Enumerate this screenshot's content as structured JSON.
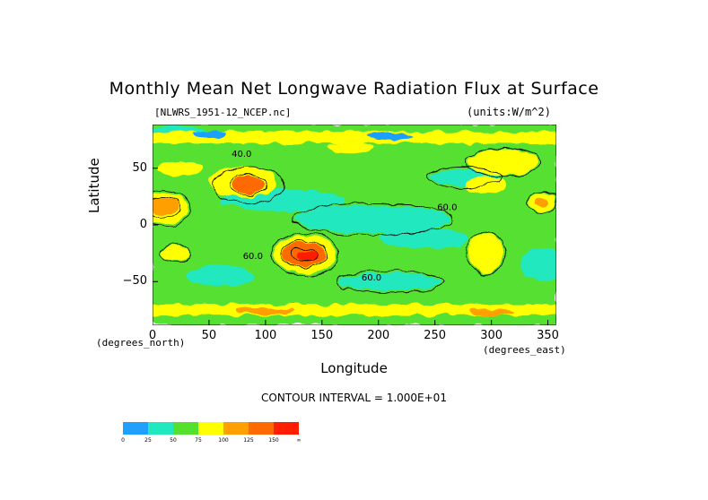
{
  "chart_data": {
    "type": "heatmap",
    "title": "Monthly Mean Net Longwave Radiation Flux at Surface",
    "subtitle_left": "[NLWRS_1951-12_NCEP.nc]",
    "subtitle_right": "(units:W/m^2)",
    "xlabel": "Longitude",
    "xlabel_unit": "(degrees_east)",
    "ylabel": "Latitude",
    "ylabel_unit": "(degrees_north)",
    "xlim": [
      0,
      357.5
    ],
    "ylim": [
      -88.5,
      88.5
    ],
    "x_ticks": [
      {
        "value": 0,
        "label": "0"
      },
      {
        "value": 50,
        "label": "50"
      },
      {
        "value": 100,
        "label": "100"
      },
      {
        "value": 150,
        "label": "150"
      },
      {
        "value": 200,
        "label": "200"
      },
      {
        "value": 250,
        "label": "250"
      },
      {
        "value": 300,
        "label": "300"
      },
      {
        "value": 350,
        "label": "350"
      }
    ],
    "y_ticks": [
      {
        "value": 50,
        "label": "50"
      },
      {
        "value": 0,
        "label": "0"
      },
      {
        "value": -50,
        "label": "−50"
      }
    ],
    "contour_interval_text": "CONTOUR INTERVAL = 1.000E+01",
    "contour_labels": [
      {
        "text": "40.0",
        "x": 70,
        "y": 60
      },
      {
        "text": "60.0",
        "x": 252,
        "y": 13
      },
      {
        "text": "60.0",
        "x": 80,
        "y": -30
      },
      {
        "text": "60.0",
        "x": 185,
        "y": -49
      }
    ],
    "colorbar": {
      "levels": [
        "0",
        "25",
        "50",
        "75",
        "100",
        "125",
        "150",
        "∞"
      ],
      "colors": [
        "#1fa0ff",
        "#22e8c0",
        "#55e030",
        "#ffff00",
        "#ffa000",
        "#ff6a00",
        "#ff1f00"
      ]
    },
    "regions": [
      {
        "name": "tropical-pacific-low",
        "level": 1,
        "x": 185,
        "y": 5
      },
      {
        "name": "australia-high",
        "level": 5,
        "x": 135,
        "y": -25
      },
      {
        "name": "africa-sahara-high",
        "level": 4,
        "x": 10,
        "y": 15
      },
      {
        "name": "tibet-high",
        "level": 5,
        "x": 85,
        "y": 35
      },
      {
        "name": "north-america-high",
        "level": 3,
        "x": 300,
        "y": 45
      },
      {
        "name": "antarctic-coast-band",
        "level": 3,
        "x": 180,
        "y": -75
      },
      {
        "name": "arctic-band",
        "level": 3,
        "x": 180,
        "y": 80
      }
    ]
  }
}
